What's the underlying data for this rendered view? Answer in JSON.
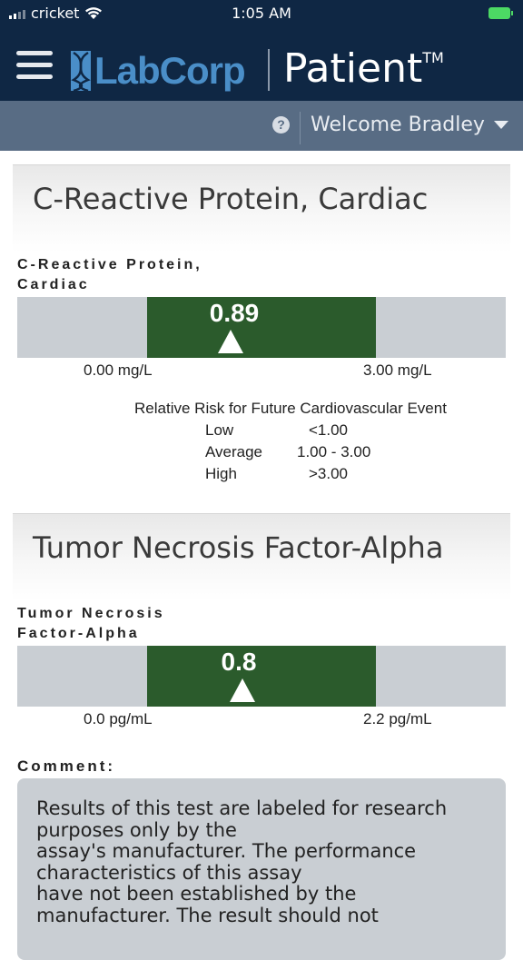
{
  "status_bar": {
    "carrier": "cricket",
    "time": "1:05 AM"
  },
  "header": {
    "logo_text": "LabCorp",
    "app_name": "Patient",
    "trademark": "TM"
  },
  "subheader": {
    "help_symbol": "?",
    "welcome": "Welcome Bradley"
  },
  "colors": {
    "nav_bg": "#0f2744",
    "subbar_bg": "#586c84",
    "range_green": "#2b5b2c",
    "bar_grey": "#c9ced3",
    "logo_blue": "#4a8ec8"
  },
  "tests": [
    {
      "title": "C-Reactive Protein, Cardiac",
      "label_line1": "C-Reactive Protein,",
      "label_line2": "Cardiac",
      "value": "0.89",
      "range_min": "0.00 mg/L",
      "range_max": "3.00 mg/L",
      "risk_title": "Relative Risk for Future Cardiovascular Event",
      "risk": [
        {
          "level": "Low",
          "range": "<1.00"
        },
        {
          "level": "Average",
          "range": "1.00 - 3.00"
        },
        {
          "level": "High",
          "range": ">3.00"
        }
      ]
    },
    {
      "title": "Tumor Necrosis Factor-Alpha",
      "label_line1": "Tumor Necrosis",
      "label_line2": "Factor-Alpha",
      "value": "0.8",
      "range_min": "0.0 pg/mL",
      "range_max": "2.2 pg/mL",
      "comment_label": "Comment:",
      "comment": "Results of this test are labeled for research\npurposes only by the\nassay's manufacturer. The performance\ncharacteristics of this assay\nhave not been established by the\nmanufacturer. The result should not"
    }
  ]
}
